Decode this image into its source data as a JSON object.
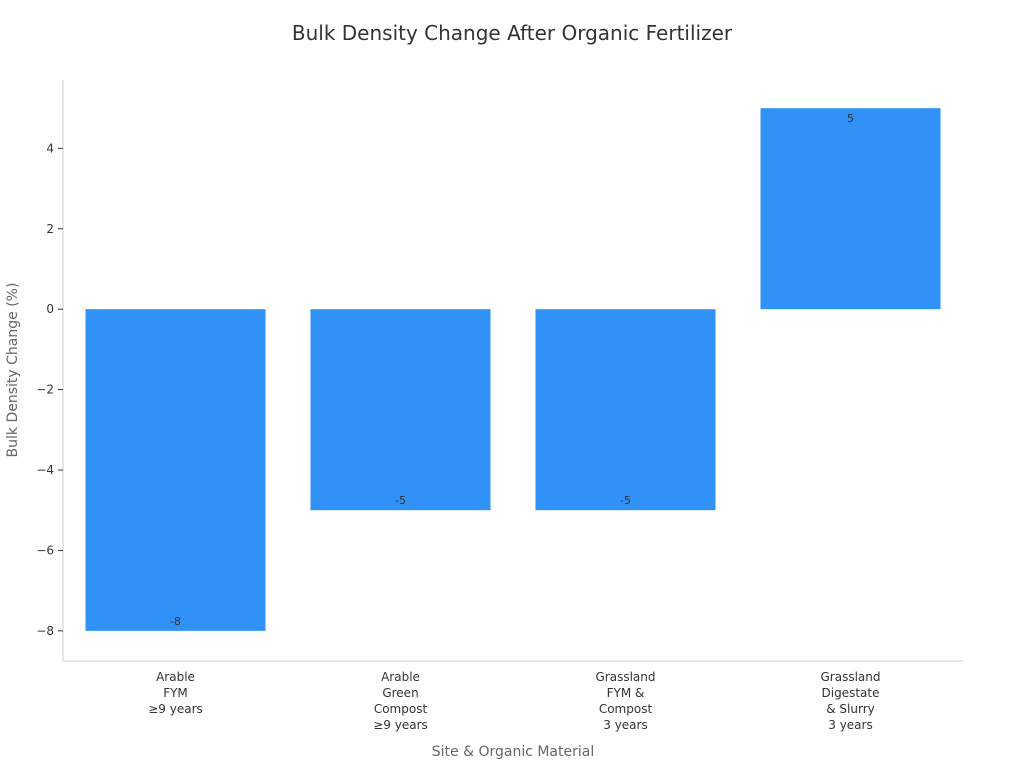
{
  "chart_data": {
    "type": "bar",
    "title": "Bulk Density Change After Organic Fertilizer",
    "xlabel": "Site & Organic Material",
    "ylabel": "Bulk Density Change (%)",
    "categories": [
      [
        "Arable",
        "FYM",
        "≥9 years"
      ],
      [
        "Arable",
        "Green",
        "Compost",
        "≥9 years"
      ],
      [
        "Grassland",
        "FYM &",
        "Compost",
        "3 years"
      ],
      [
        "Grassland",
        "Digestate",
        "& Slurry",
        "3 years"
      ]
    ],
    "values": [
      -8,
      -5,
      -5,
      5
    ],
    "data_labels": [
      "-8",
      "-5",
      "-5",
      "5"
    ],
    "yticks": [
      -8,
      -6,
      -4,
      -2,
      0,
      2,
      4
    ],
    "ytick_labels": [
      "−8",
      "−6",
      "−4",
      "−2",
      "0",
      "2",
      "4"
    ],
    "ylim": [
      -8.75,
      5.7
    ],
    "grid": false,
    "legend": "none",
    "bar_color": "#3092f7"
  }
}
